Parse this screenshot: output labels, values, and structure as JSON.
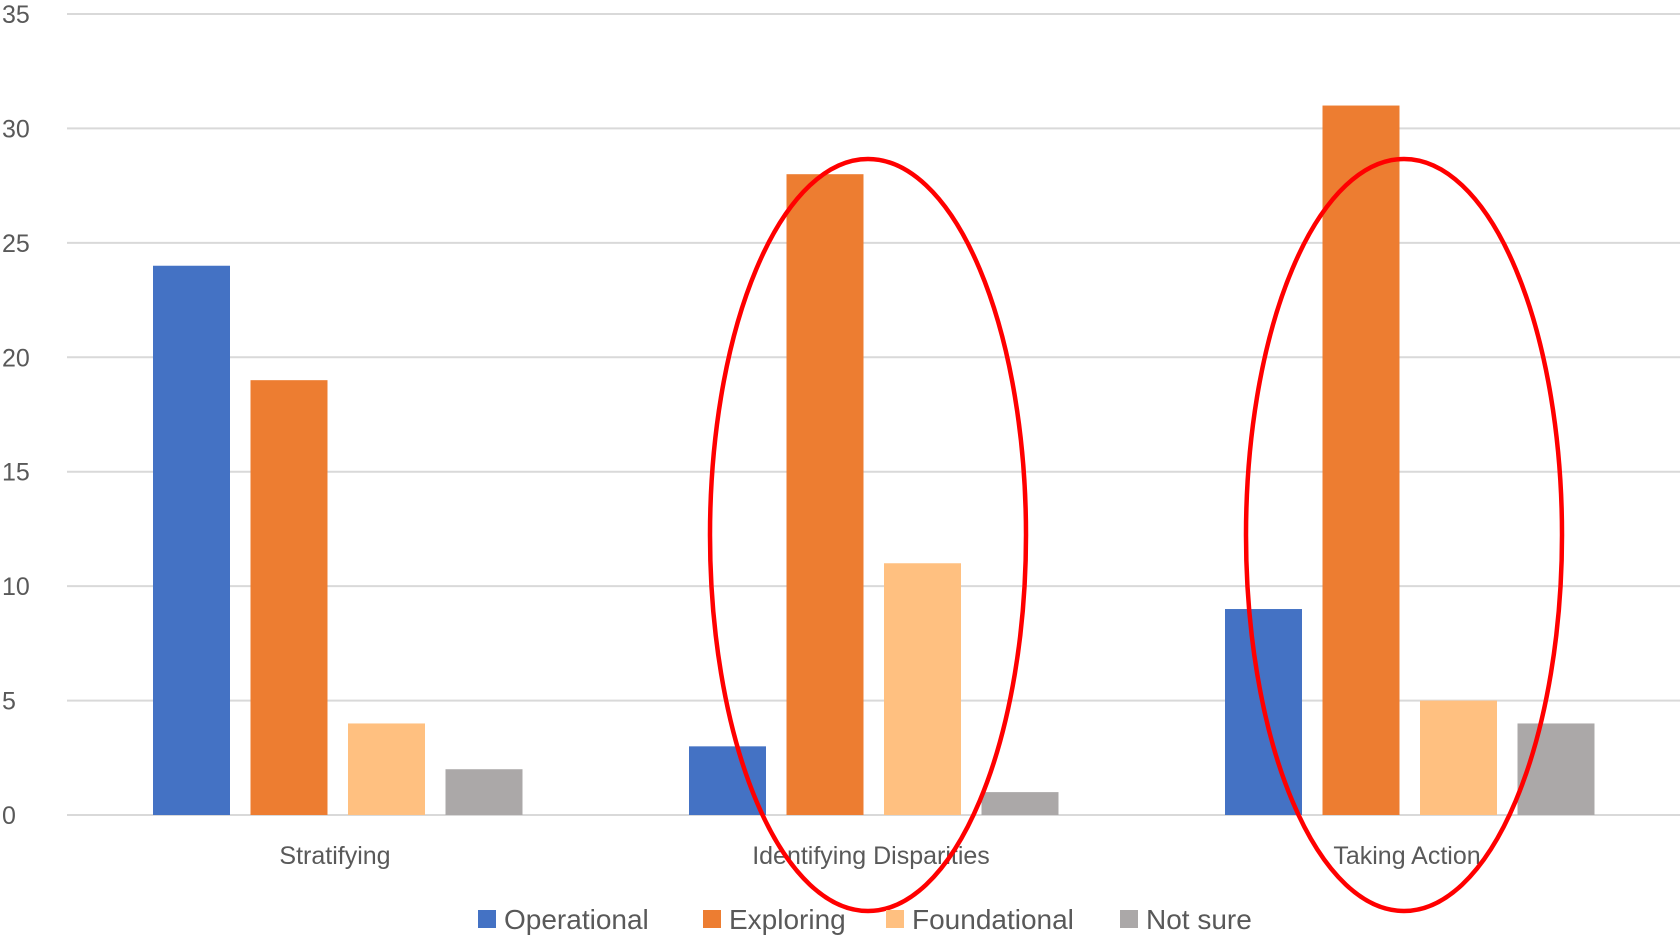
{
  "chart_data": {
    "type": "bar",
    "title": "",
    "xlabel": "",
    "ylabel": "",
    "ylim": [
      0,
      35
    ],
    "yticks": [
      0,
      5,
      10,
      15,
      20,
      25,
      30,
      35
    ],
    "grid": true,
    "legend_position": "bottom",
    "categories": [
      "Stratifying",
      "Identifying Disparities",
      "Taking Action"
    ],
    "series": [
      {
        "name": "Operational",
        "color": "#4472C4",
        "values": [
          24,
          3,
          9
        ]
      },
      {
        "name": "Exploring",
        "color": "#ED7D31",
        "values": [
          19,
          28,
          31
        ]
      },
      {
        "name": "Foundational",
        "color": "#FFC080",
        "values": [
          4,
          11,
          5
        ]
      },
      {
        "name": "Not sure",
        "color": "#ABA8A8",
        "values": [
          2,
          1,
          4
        ]
      }
    ],
    "highlights": [
      {
        "shape": "ellipse",
        "color": "#FF0000",
        "category": "Identifying Disparities"
      },
      {
        "shape": "ellipse",
        "color": "#FF0000",
        "category": "Taking Action"
      }
    ]
  }
}
